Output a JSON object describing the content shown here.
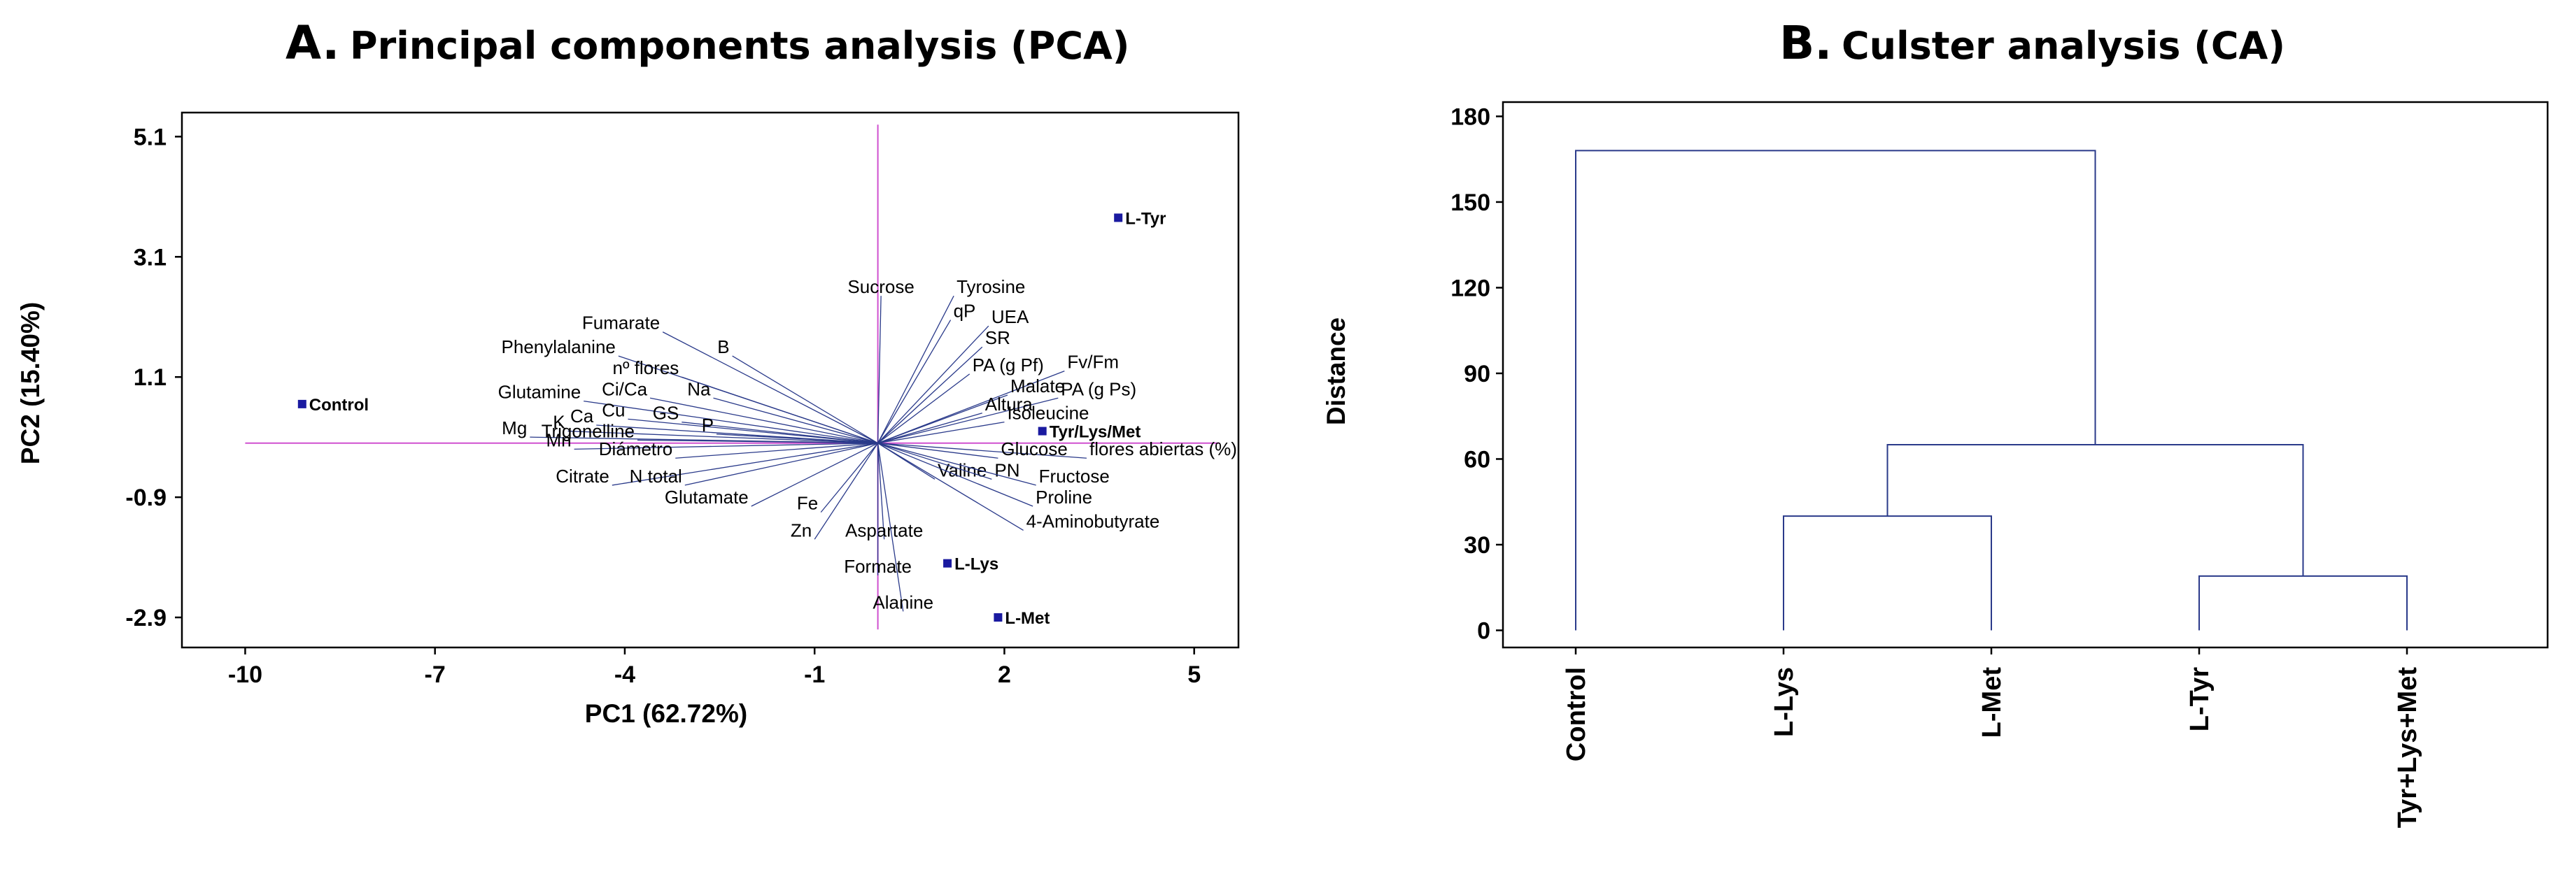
{
  "chart_data": [
    {
      "type": "scatter",
      "subtype": "biplot",
      "title_prefix": "A.",
      "title": "Principal components analysis (PCA)",
      "xlabel": "PC1 (62.72%)",
      "ylabel": "PC2 (15.40%)",
      "xlim": [
        -11,
        5.7
      ],
      "ylim": [
        -3.4,
        5.5
      ],
      "xticks": [
        -10,
        -7,
        -4,
        -1,
        2,
        5
      ],
      "yticks": [
        5.1,
        3.1,
        1.1,
        -0.9,
        -2.9
      ],
      "xtick_labels": [
        "-10",
        "-7",
        "-4",
        "-1",
        "2",
        "5"
      ],
      "ytick_labels": [
        "5.1",
        "3.1",
        "1.1",
        "-0.9",
        "-2.9"
      ],
      "observations": [
        {
          "label": "Control",
          "x": -9.1,
          "y": 0.65
        },
        {
          "label": "L-Tyr",
          "x": 3.8,
          "y": 3.75
        },
        {
          "label": "Tyr/Lys/Met",
          "x": 2.6,
          "y": 0.2
        },
        {
          "label": "L-Lys",
          "x": 1.1,
          "y": -2.0
        },
        {
          "label": "L-Met",
          "x": 1.9,
          "y": -2.9
        }
      ],
      "variables": [
        {
          "label": "Sucrose",
          "x": 0.05,
          "y": 2.45
        },
        {
          "label": "Tyrosine",
          "x": 1.2,
          "y": 2.45
        },
        {
          "label": "qP",
          "x": 1.15,
          "y": 2.05
        },
        {
          "label": "UEA",
          "x": 1.75,
          "y": 1.95
        },
        {
          "label": "SR",
          "x": 1.65,
          "y": 1.6
        },
        {
          "label": "PA (g Pf)",
          "x": 1.45,
          "y": 1.15
        },
        {
          "label": "Fv/Fm",
          "x": 2.95,
          "y": 1.2
        },
        {
          "label": "Malate",
          "x": 2.05,
          "y": 0.8
        },
        {
          "label": "PA (g Ps)",
          "x": 2.85,
          "y": 0.75
        },
        {
          "label": "Altura",
          "x": 1.65,
          "y": 0.5
        },
        {
          "label": "Isoleucine",
          "x": 2.0,
          "y": 0.35
        },
        {
          "label": "flores abiertas (%)",
          "x": 3.3,
          "y": -0.25
        },
        {
          "label": "Glucose",
          "x": 1.9,
          "y": -0.25
        },
        {
          "label": "Valine",
          "x": 0.9,
          "y": -0.6
        },
        {
          "label": "PN",
          "x": 1.8,
          "y": -0.6
        },
        {
          "label": "Fructose",
          "x": 2.5,
          "y": -0.7
        },
        {
          "label": "Proline",
          "x": 2.45,
          "y": -1.05
        },
        {
          "label": "4-Aminobutyrate",
          "x": 2.3,
          "y": -1.45
        },
        {
          "label": "Fumarate",
          "x": -3.4,
          "y": 1.85
        },
        {
          "label": "Phenylalanine",
          "x": -4.1,
          "y": 1.45
        },
        {
          "label": "B",
          "x": -2.3,
          "y": 1.45
        },
        {
          "label": "nº flores",
          "x": -3.1,
          "y": 1.1
        },
        {
          "label": "Ci/Ca",
          "x": -3.6,
          "y": 0.75
        },
        {
          "label": "Glutamine",
          "x": -4.65,
          "y": 0.7
        },
        {
          "label": "Na",
          "x": -2.6,
          "y": 0.75
        },
        {
          "label": "Cu",
          "x": -3.95,
          "y": 0.4
        },
        {
          "label": "GS",
          "x": -3.1,
          "y": 0.35
        },
        {
          "label": "Ca",
          "x": -4.45,
          "y": 0.3
        },
        {
          "label": "K",
          "x": -4.9,
          "y": 0.2
        },
        {
          "label": "Mg",
          "x": -5.5,
          "y": 0.1
        },
        {
          "label": "P",
          "x": -2.55,
          "y": 0.15
        },
        {
          "label": "Trigonelline",
          "x": -3.8,
          "y": 0.05
        },
        {
          "label": "Mn",
          "x": -4.8,
          "y": -0.1
        },
        {
          "label": "Diámetro",
          "x": -3.2,
          "y": -0.25
        },
        {
          "label": "Citrate",
          "x": -4.2,
          "y": -0.7
        },
        {
          "label": "N total",
          "x": -3.05,
          "y": -0.7
        },
        {
          "label": "Glutamate",
          "x": -2.0,
          "y": -1.05
        },
        {
          "label": "Fe",
          "x": -0.9,
          "y": -1.15
        },
        {
          "label": "Zn",
          "x": -1.0,
          "y": -1.6
        },
        {
          "label": "Aspartate",
          "x": 0.1,
          "y": -1.6
        },
        {
          "label": "Formate",
          "x": 0.0,
          "y": -2.2
        },
        {
          "label": "Alanine",
          "x": 0.4,
          "y": -2.8
        }
      ]
    },
    {
      "type": "dendrogram",
      "title_prefix": "B.",
      "title": "Culster analysis (CA)",
      "ylabel": "Distance",
      "ylim": [
        -6,
        185
      ],
      "yticks": [
        0,
        30,
        60,
        90,
        120,
        150,
        180
      ],
      "ytick_labels": [
        "0",
        "30",
        "60",
        "90",
        "120",
        "150",
        "180"
      ],
      "leaves": [
        "Control",
        "L-Lys",
        "L-Met",
        "L-Tyr",
        "Tyr+Lys+Met"
      ],
      "merges": [
        {
          "left": "L-Tyr",
          "right": "Tyr+Lys+Met",
          "height": 19
        },
        {
          "left": "L-Lys",
          "right": "L-Met",
          "height": 40
        },
        {
          "left": "(L-Lys, L-Met)",
          "right": "(L-Tyr, Tyr+Lys+Met)",
          "height": 65
        },
        {
          "left": "Control",
          "right": "(rest)",
          "height": 168
        }
      ]
    }
  ]
}
